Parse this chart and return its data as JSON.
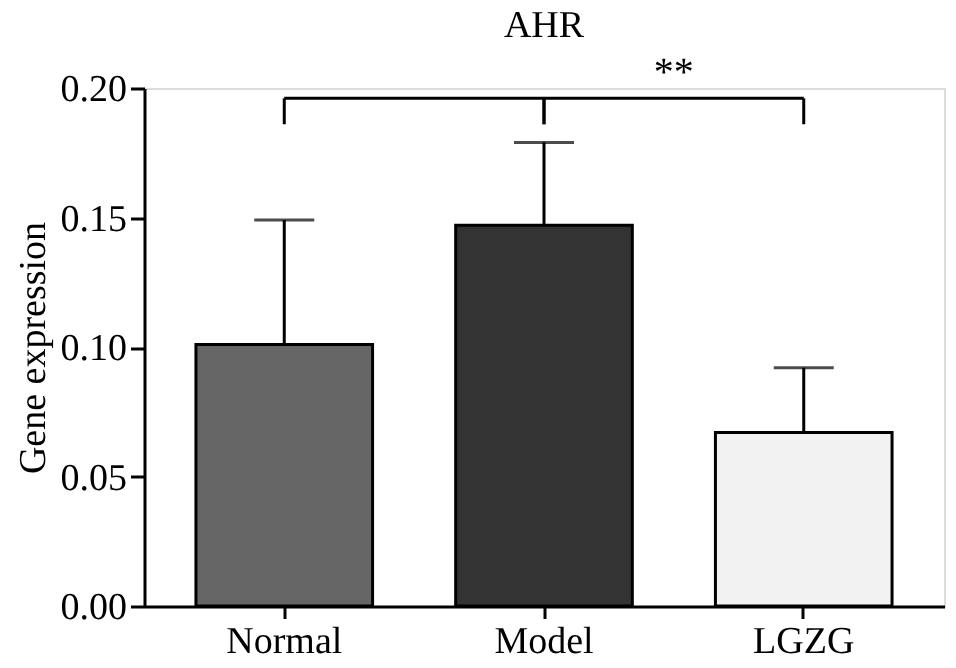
{
  "chart_data": {
    "type": "bar",
    "title": "AHR",
    "ylabel": "Gene expression",
    "categories": [
      "Normal",
      "Model",
      "LGZG"
    ],
    "values": [
      0.101,
      0.147,
      0.067
    ],
    "errors": [
      [
        0.101,
        0.149
      ],
      [
        0.147,
        0.179
      ],
      [
        0.067,
        0.092
      ]
    ],
    "colors": [
      "#666666",
      "#333333",
      "#f2f2f2"
    ],
    "ylim": [
      0,
      0.2
    ],
    "yticks": [
      {
        "value": 0,
        "label": "0.00"
      },
      {
        "value": 0.05,
        "label": "0.05"
      },
      {
        "value": 0.1,
        "label": "0.10"
      },
      {
        "value": 0.15,
        "label": "0.15"
      },
      {
        "value": 0.2,
        "label": "0.20"
      }
    ],
    "annotations": [
      "**"
    ],
    "grid": false,
    "legend": false
  }
}
